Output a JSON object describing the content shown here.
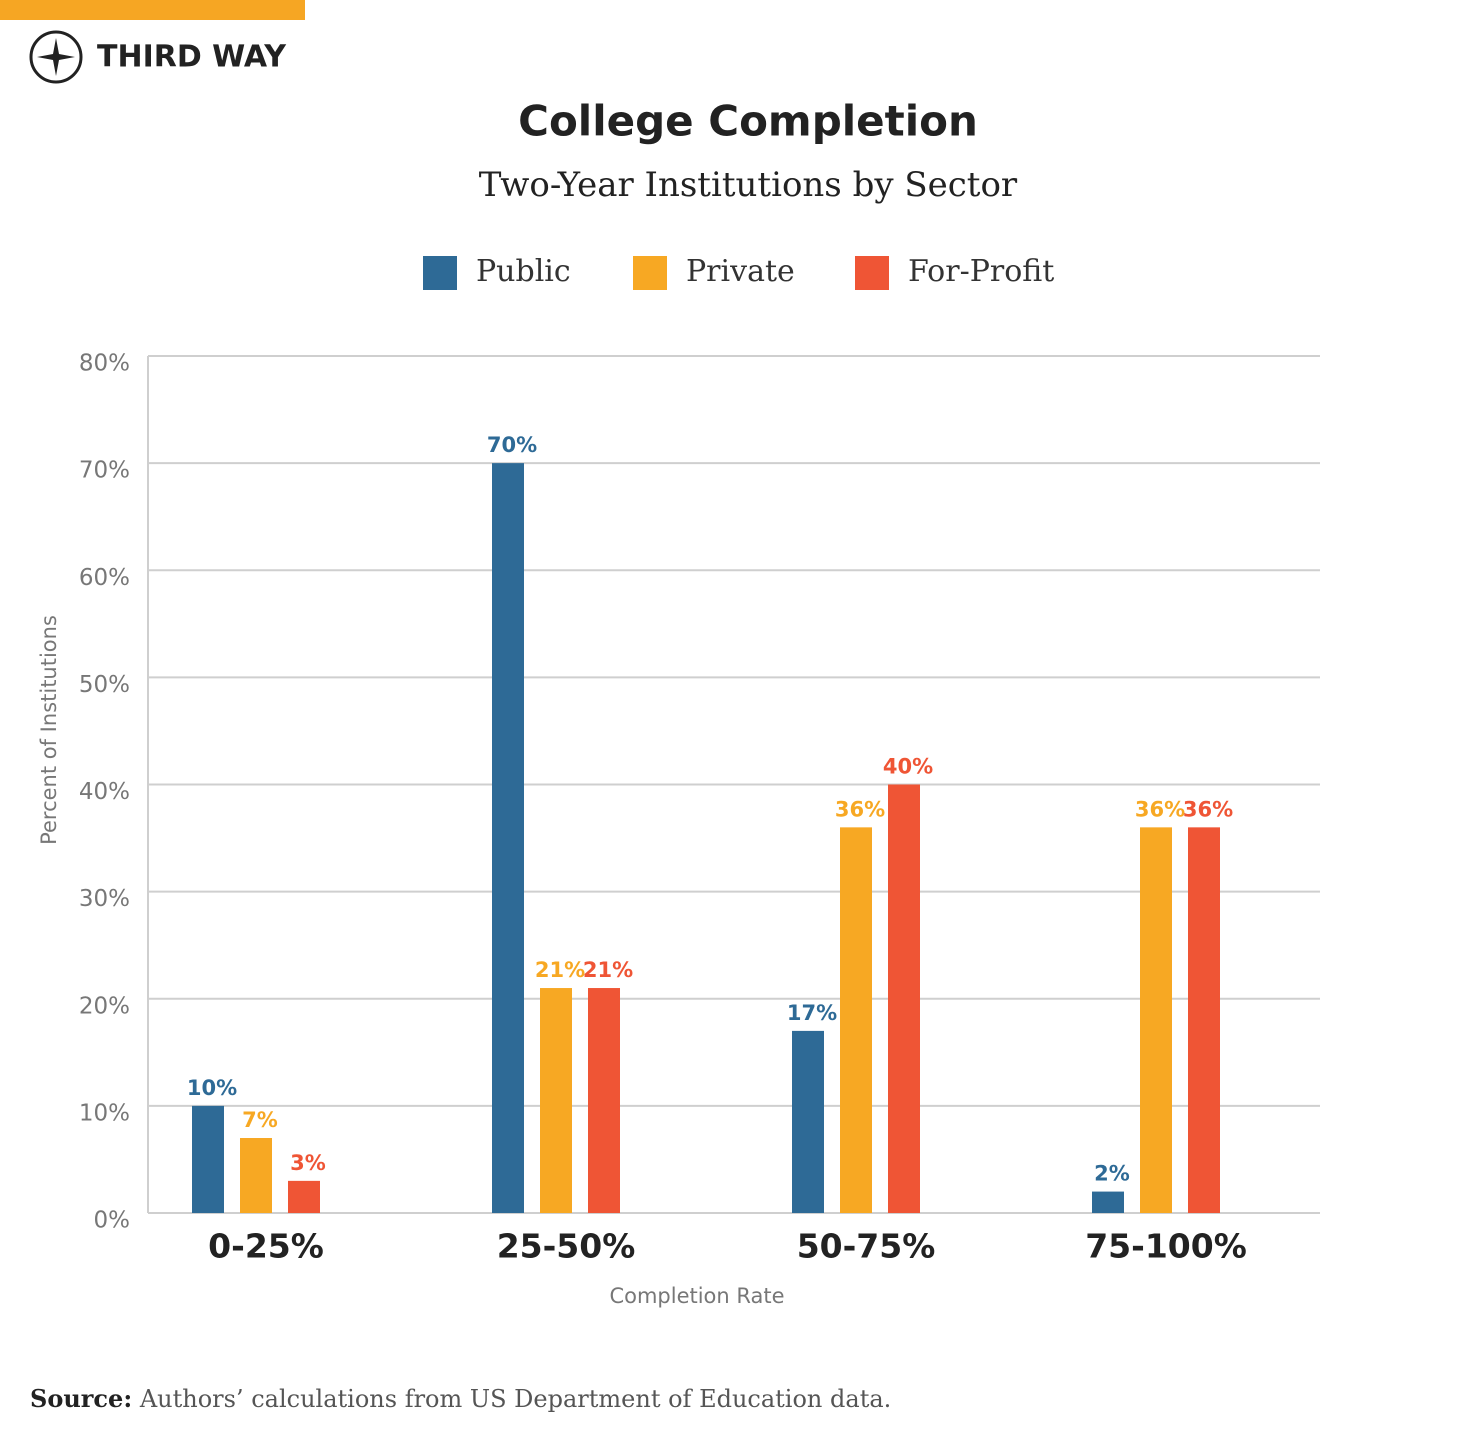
{
  "header": {
    "brand": "THIRD WAY"
  },
  "chart_data": {
    "type": "bar",
    "title": "College Completion",
    "subtitle": "Two-Year Institutions by Sector",
    "y_label": "Percent of Institutions",
    "x_label": "Completion Rate",
    "categories": [
      "0-25%",
      "25-50%",
      "50-75%",
      "75-100%"
    ],
    "series": [
      {
        "name": "Public",
        "color": "#2e6a96",
        "values": [
          10,
          70,
          17,
          2
        ],
        "value_labels": [
          "10%",
          "70%",
          "17%",
          "2%"
        ]
      },
      {
        "name": "Private",
        "color": "#f7a823",
        "values": [
          7,
          21,
          36,
          36
        ],
        "value_labels": [
          "7%",
          "21%",
          "36%",
          "36%"
        ]
      },
      {
        "name": "For-Profit",
        "color": "#ef5535",
        "values": [
          3,
          21,
          40,
          36
        ],
        "value_labels": [
          "3%",
          "21%",
          "40%",
          "36%"
        ]
      }
    ],
    "ylim": [
      0,
      80
    ],
    "yticks": [
      {
        "value": 0,
        "label": "0%"
      },
      {
        "value": 10,
        "label": "10%"
      },
      {
        "value": 20,
        "label": "20%"
      },
      {
        "value": 30,
        "label": "30%"
      },
      {
        "value": 40,
        "label": "40%"
      },
      {
        "value": 50,
        "label": "50%"
      },
      {
        "value": 60,
        "label": "60%"
      },
      {
        "value": 70,
        "label": "70%"
      },
      {
        "value": 80,
        "label": "80%"
      }
    ],
    "grid": true,
    "legend": "top",
    "source_label": "Source:",
    "source": "Authors’ calculations from US Department of Education data."
  }
}
